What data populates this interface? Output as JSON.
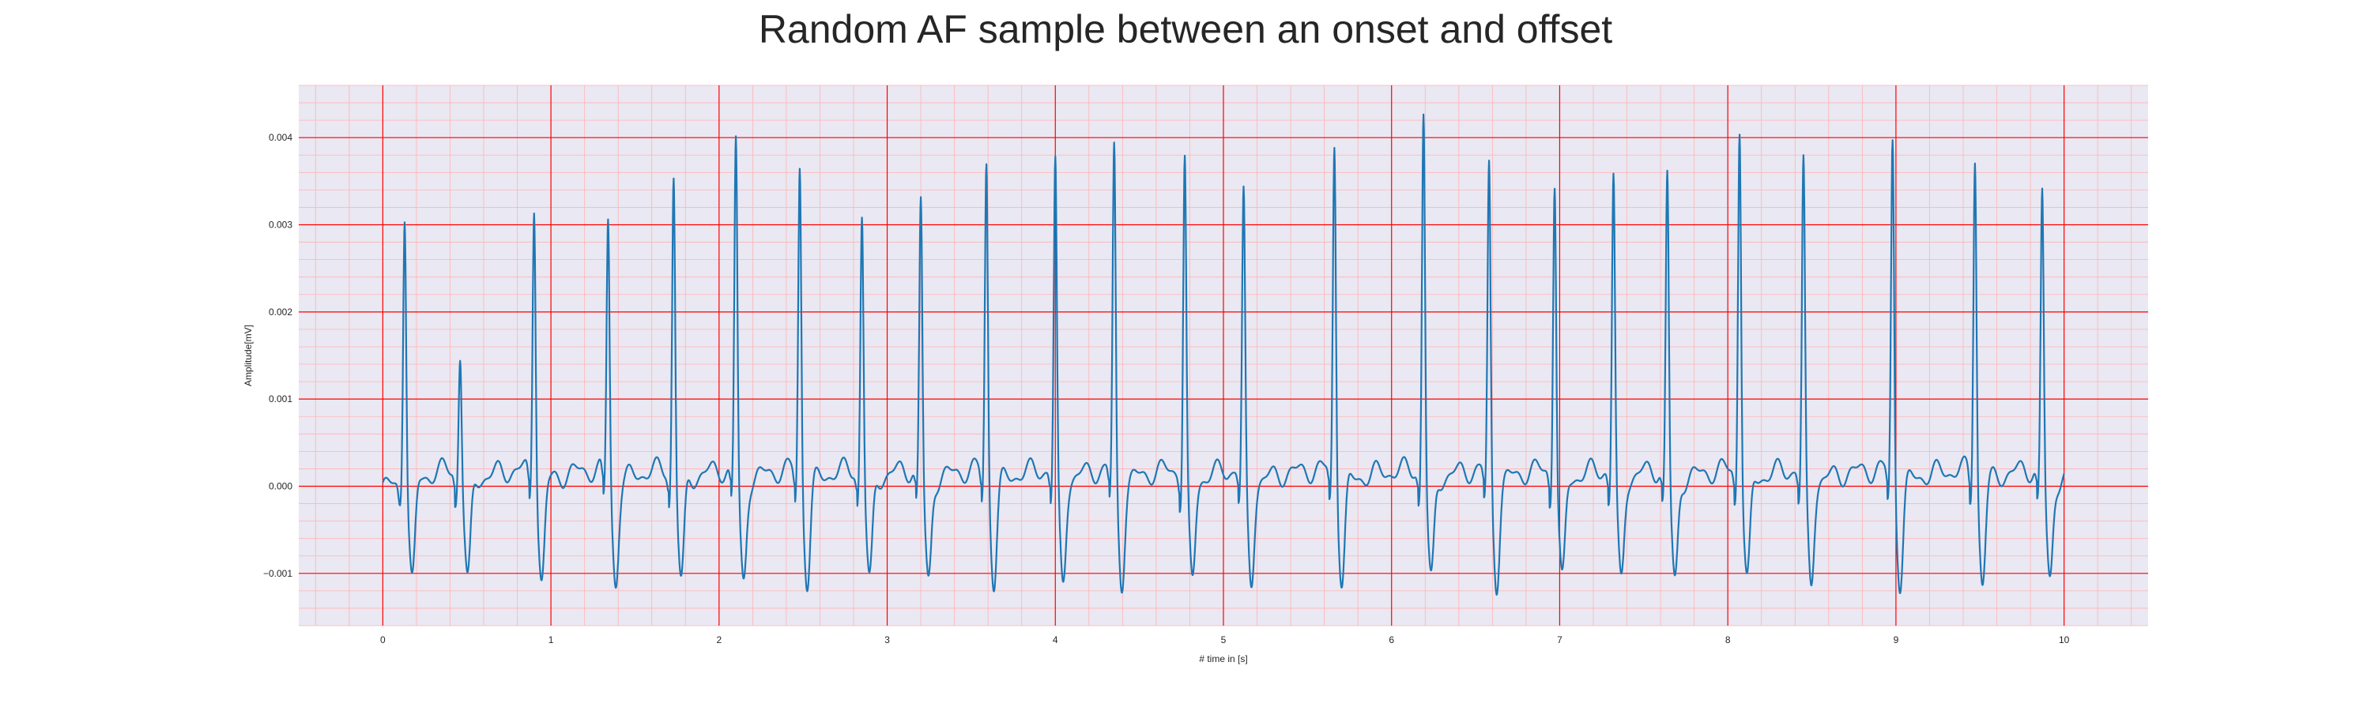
{
  "colors": {
    "plot_background": "#eae8f2",
    "major_grid": "#ff0000",
    "minor_grid": "#ffb3b3",
    "line": "#1f77b4"
  },
  "chart_data": {
    "type": "line",
    "title": "Random AF sample between an onset and offset",
    "xlabel": "# time in [s]",
    "ylabel": "Amplitude[mV]",
    "xlim": [
      -0.5,
      10.5
    ],
    "ylim": [
      -0.0016,
      0.0046
    ],
    "grid": true,
    "minor_grid": true,
    "x_ticks": [
      0,
      1,
      2,
      3,
      4,
      5,
      6,
      7,
      8,
      9,
      10
    ],
    "x_tick_labels": [
      "0",
      "1",
      "2",
      "3",
      "4",
      "5",
      "6",
      "7",
      "8",
      "9",
      "10"
    ],
    "y_ticks": [
      -0.001,
      0.0,
      0.001,
      0.002,
      0.003,
      0.004
    ],
    "y_tick_labels": [
      "−0.001",
      "0.000",
      "0.001",
      "0.002",
      "0.003",
      "0.004"
    ],
    "series": [
      {
        "name": "",
        "x_range": [
          0,
          10
        ],
        "r_peaks": [
          {
            "t": 0.13,
            "amp": 0.0032
          },
          {
            "t": 0.46,
            "amp": 0.00155
          },
          {
            "t": 0.9,
            "amp": 0.0033
          },
          {
            "t": 1.34,
            "amp": 0.0031
          },
          {
            "t": 1.73,
            "amp": 0.0036
          },
          {
            "t": 2.1,
            "amp": 0.004
          },
          {
            "t": 2.48,
            "amp": 0.0037
          },
          {
            "t": 2.85,
            "amp": 0.00315
          },
          {
            "t": 3.2,
            "amp": 0.0033
          },
          {
            "t": 3.59,
            "amp": 0.00375
          },
          {
            "t": 4.0,
            "amp": 0.00373
          },
          {
            "t": 4.35,
            "amp": 0.0039
          },
          {
            "t": 4.77,
            "amp": 0.0038
          },
          {
            "t": 5.12,
            "amp": 0.00335
          },
          {
            "t": 5.66,
            "amp": 0.00397
          },
          {
            "t": 6.19,
            "amp": 0.00433
          },
          {
            "t": 6.58,
            "amp": 0.0037
          },
          {
            "t": 6.97,
            "amp": 0.00355
          },
          {
            "t": 7.32,
            "amp": 0.0036
          },
          {
            "t": 7.64,
            "amp": 0.0036
          },
          {
            "t": 8.07,
            "amp": 0.00418
          },
          {
            "t": 8.45,
            "amp": 0.00372
          },
          {
            "t": 8.98,
            "amp": 0.004
          },
          {
            "t": 9.47,
            "amp": 0.00383
          },
          {
            "t": 9.87,
            "amp": 0.0034
          }
        ]
      }
    ]
  }
}
